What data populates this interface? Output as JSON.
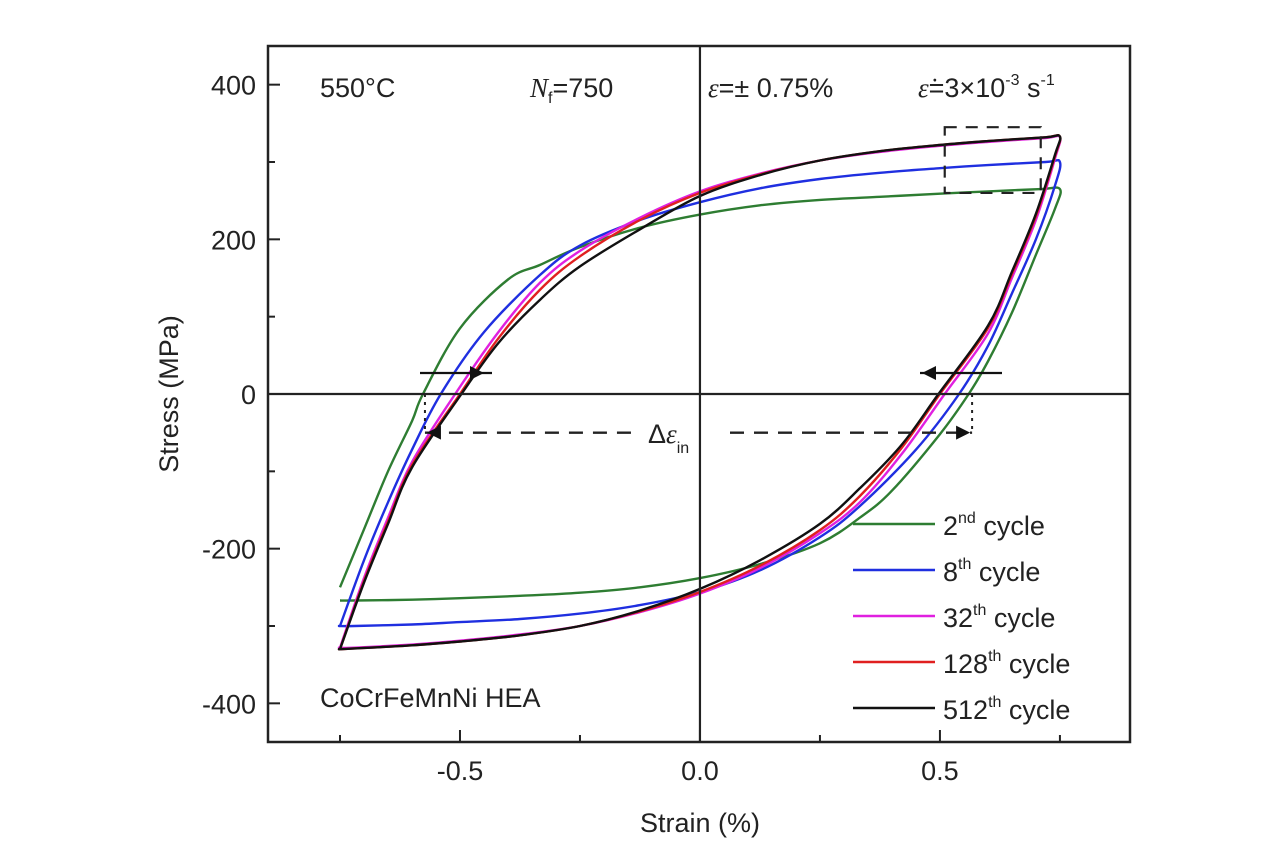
{
  "chart_data": {
    "type": "line",
    "title": "",
    "xlabel": "Strain (%)",
    "ylabel": "Stress (MPa)",
    "xlim": [
      -0.9,
      0.896
    ],
    "ylim": [
      -450,
      450
    ],
    "x_ticks": [
      -0.5,
      0.0,
      0.5
    ],
    "x_tick_labels": [
      "-0.5",
      "0.0",
      "0.5"
    ],
    "x_minor_ticks": [
      -0.75,
      -0.25,
      0.25,
      0.75
    ],
    "y_ticks": [
      400,
      200,
      0,
      -200,
      -400
    ],
    "y_tick_labels": [
      "400",
      "200",
      "0",
      "-200",
      "-400"
    ],
    "y_minor_ticks": [
      300,
      100,
      -100,
      -300
    ],
    "grid": false,
    "zero_lines": true,
    "legend_position": "bottom-right",
    "annotations": {
      "temperature": "550°C",
      "nf_symbol": "N",
      "nf_sub": "f",
      "nf_value": "=750",
      "strain_amp_symbol": "ε",
      "strain_amp_value": "=± 0.75%",
      "strain_rate_symbol": "ε̇",
      "strain_rate_value": "=3×10",
      "strain_rate_exp": "-3",
      "strain_rate_unit": " s",
      "strain_rate_unit_exp": "-1",
      "material": "CoCrFeMnNi HEA",
      "delta_symbol": "Δ",
      "delta_eps": "ε",
      "delta_sub": "in"
    },
    "inelastic_strain_marker": {
      "from": -0.573,
      "to": 0.567,
      "stress": -50
    },
    "zoom_box": {
      "x": [
        0.51,
        0.71
      ],
      "y": [
        260,
        345
      ]
    },
    "series": [
      {
        "name": "2nd cycle",
        "ordinal": "2",
        "suffix": "nd",
        "label_rest": " cycle",
        "color": "#2e7d32",
        "points": [
          [
            -0.75,
            -250
          ],
          [
            -0.7,
            -175
          ],
          [
            -0.65,
            -100
          ],
          [
            -0.6,
            -35
          ],
          [
            -0.577,
            0
          ],
          [
            -0.5,
            85
          ],
          [
            -0.4,
            148
          ],
          [
            -0.333,
            167
          ],
          [
            -0.25,
            190
          ],
          [
            -0.125,
            215
          ],
          [
            0.0,
            232
          ],
          [
            0.125,
            244
          ],
          [
            0.25,
            251
          ],
          [
            0.375,
            255
          ],
          [
            0.5,
            259
          ],
          [
            0.6,
            262
          ],
          [
            0.71,
            265
          ],
          [
            0.75,
            265
          ],
          [
            0.74,
            240
          ],
          [
            0.7,
            180
          ],
          [
            0.65,
            105
          ],
          [
            0.6,
            42
          ],
          [
            0.56,
            0
          ],
          [
            0.5,
            -52
          ],
          [
            0.4,
            -125
          ],
          [
            0.333,
            -160
          ],
          [
            0.25,
            -193
          ],
          [
            0.125,
            -220
          ],
          [
            0.0,
            -238
          ],
          [
            -0.125,
            -250
          ],
          [
            -0.25,
            -257
          ],
          [
            -0.375,
            -261
          ],
          [
            -0.5,
            -264
          ],
          [
            -0.6,
            -266
          ],
          [
            -0.72,
            -267
          ],
          [
            -0.75,
            -267
          ]
        ]
      },
      {
        "name": "8th cycle",
        "ordinal": "8",
        "suffix": "th",
        "label_rest": " cycle",
        "color": "#1f2fe0",
        "points": [
          [
            -0.75,
            -300
          ],
          [
            -0.7,
            -215
          ],
          [
            -0.65,
            -140
          ],
          [
            -0.6,
            -72
          ],
          [
            -0.54,
            0
          ],
          [
            -0.45,
            80
          ],
          [
            -0.333,
            154
          ],
          [
            -0.25,
            192
          ],
          [
            -0.125,
            225
          ],
          [
            0.0,
            248
          ],
          [
            0.125,
            266
          ],
          [
            0.25,
            278
          ],
          [
            0.375,
            286
          ],
          [
            0.5,
            292
          ],
          [
            0.6,
            296
          ],
          [
            0.72,
            300
          ],
          [
            0.75,
            300
          ],
          [
            0.74,
            270
          ],
          [
            0.7,
            200
          ],
          [
            0.65,
            130
          ],
          [
            0.6,
            62
          ],
          [
            0.54,
            0
          ],
          [
            0.45,
            -72
          ],
          [
            0.333,
            -145
          ],
          [
            0.25,
            -185
          ],
          [
            0.125,
            -228
          ],
          [
            0.0,
            -256
          ],
          [
            -0.125,
            -273
          ],
          [
            -0.25,
            -284
          ],
          [
            -0.375,
            -291
          ],
          [
            -0.5,
            -295
          ],
          [
            -0.6,
            -298
          ],
          [
            -0.72,
            -300
          ],
          [
            -0.75,
            -300
          ]
        ]
      },
      {
        "name": "32th cycle",
        "ordinal": "32",
        "suffix": "th",
        "label_rest": " cycle",
        "color": "#e020e0",
        "points": [
          [
            -0.75,
            -328
          ],
          [
            -0.7,
            -238
          ],
          [
            -0.65,
            -160
          ],
          [
            -0.6,
            -88
          ],
          [
            -0.51,
            0
          ],
          [
            -0.42,
            80
          ],
          [
            -0.333,
            144
          ],
          [
            -0.25,
            185
          ],
          [
            -0.125,
            228
          ],
          [
            0.0,
            262
          ],
          [
            0.125,
            285
          ],
          [
            0.25,
            302
          ],
          [
            0.375,
            313
          ],
          [
            0.5,
            321
          ],
          [
            0.6,
            326
          ],
          [
            0.72,
            331
          ],
          [
            0.75,
            332
          ],
          [
            0.74,
            305
          ],
          [
            0.7,
            225
          ],
          [
            0.65,
            150
          ],
          [
            0.6,
            78
          ],
          [
            0.51,
            0
          ],
          [
            0.42,
            -78
          ],
          [
            0.333,
            -140
          ],
          [
            0.25,
            -180
          ],
          [
            0.125,
            -225
          ],
          [
            0.0,
            -258
          ],
          [
            -0.125,
            -282
          ],
          [
            -0.25,
            -300
          ],
          [
            -0.375,
            -311
          ],
          [
            -0.5,
            -319
          ],
          [
            -0.6,
            -324
          ],
          [
            -0.72,
            -328
          ],
          [
            -0.75,
            -328
          ]
        ]
      },
      {
        "name": "128th cycle",
        "ordinal": "128",
        "suffix": "th",
        "label_rest": " cycle",
        "color": "#e02020",
        "points": [
          [
            -0.75,
            -330
          ],
          [
            -0.7,
            -242
          ],
          [
            -0.65,
            -165
          ],
          [
            -0.6,
            -92
          ],
          [
            -0.5,
            0
          ],
          [
            -0.42,
            72
          ],
          [
            -0.333,
            135
          ],
          [
            -0.25,
            178
          ],
          [
            -0.125,
            225
          ],
          [
            0.0,
            260
          ],
          [
            0.125,
            284
          ],
          [
            0.25,
            302
          ],
          [
            0.375,
            314
          ],
          [
            0.5,
            322
          ],
          [
            0.6,
            327
          ],
          [
            0.72,
            332
          ],
          [
            0.75,
            333
          ],
          [
            0.74,
            308
          ],
          [
            0.7,
            230
          ],
          [
            0.65,
            155
          ],
          [
            0.6,
            85
          ],
          [
            0.5,
            0
          ],
          [
            0.42,
            -70
          ],
          [
            0.333,
            -132
          ],
          [
            0.25,
            -176
          ],
          [
            0.125,
            -222
          ],
          [
            0.0,
            -256
          ],
          [
            -0.125,
            -281
          ],
          [
            -0.25,
            -300
          ],
          [
            -0.375,
            -312
          ],
          [
            -0.5,
            -320
          ],
          [
            -0.6,
            -325
          ],
          [
            -0.72,
            -329
          ],
          [
            -0.75,
            -330
          ]
        ]
      },
      {
        "name": "512th cycle",
        "ordinal": "512",
        "suffix": "th",
        "label_rest": " cycle",
        "color": "#111111",
        "points": [
          [
            -0.75,
            -330
          ],
          [
            -0.7,
            -244
          ],
          [
            -0.65,
            -168
          ],
          [
            -0.6,
            -95
          ],
          [
            -0.497,
            0
          ],
          [
            -0.42,
            66
          ],
          [
            -0.333,
            122
          ],
          [
            -0.25,
            165
          ],
          [
            -0.125,
            213
          ],
          [
            0.0,
            256
          ],
          [
            0.125,
            283
          ],
          [
            0.25,
            302
          ],
          [
            0.375,
            314
          ],
          [
            0.5,
            322
          ],
          [
            0.6,
            327
          ],
          [
            0.72,
            332
          ],
          [
            0.75,
            333
          ],
          [
            0.74,
            310
          ],
          [
            0.7,
            233
          ],
          [
            0.65,
            158
          ],
          [
            0.6,
            88
          ],
          [
            0.497,
            0
          ],
          [
            0.42,
            -66
          ],
          [
            0.333,
            -122
          ],
          [
            0.25,
            -168
          ],
          [
            0.125,
            -215
          ],
          [
            0.0,
            -252
          ],
          [
            -0.125,
            -280
          ],
          [
            -0.25,
            -300
          ],
          [
            -0.375,
            -312
          ],
          [
            -0.5,
            -320
          ],
          [
            -0.6,
            -325
          ],
          [
            -0.72,
            -329
          ],
          [
            -0.75,
            -330
          ]
        ]
      }
    ]
  }
}
